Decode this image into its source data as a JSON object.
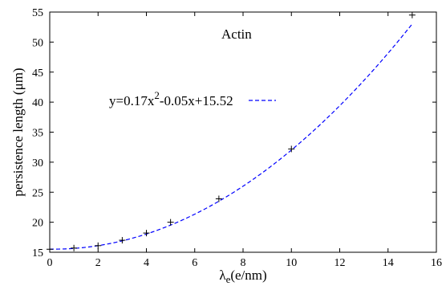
{
  "chart_data": {
    "type": "scatter",
    "annotation": "Actin",
    "xlabel": {
      "symbol": "λ",
      "subscript": "e",
      "rest": "(e/nm)"
    },
    "ylabel": "persistence length (μm)",
    "xlim": [
      0,
      16
    ],
    "ylim": [
      15,
      55
    ],
    "xticks": [
      0,
      2,
      4,
      6,
      8,
      10,
      12,
      14,
      16
    ],
    "yticks": [
      15,
      20,
      25,
      30,
      35,
      40,
      45,
      50,
      55
    ],
    "grid": false,
    "legend": {
      "placement": "upper-left",
      "label_parts": {
        "base": "y=0.17x",
        "sup": "2",
        "rest": "-0.05x+15.52"
      }
    },
    "series": [
      {
        "kind": "points",
        "marker": "+",
        "color": "#000000",
        "x": [
          0,
          1,
          2,
          3,
          4,
          5,
          7,
          10,
          15
        ],
        "y": [
          15.5,
          15.7,
          16.1,
          17.0,
          18.2,
          20.0,
          23.9,
          32.2,
          54.5
        ]
      },
      {
        "kind": "fit",
        "style": "dashed",
        "color": "#0000ff",
        "coefficients": {
          "a": 0.17,
          "b": -0.05,
          "c": 15.52
        },
        "x_range": [
          0,
          15
        ]
      }
    ]
  }
}
